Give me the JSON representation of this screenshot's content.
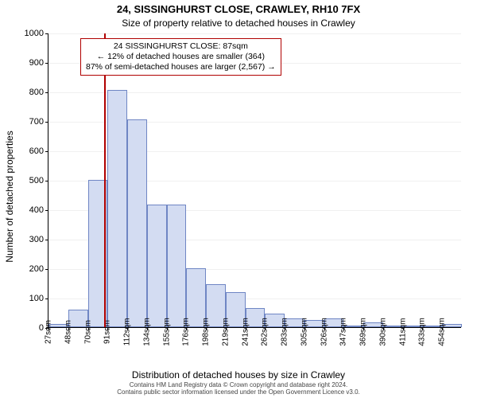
{
  "titles": {
    "line1": "24, SISSINGHURST CLOSE, CRAWLEY, RH10 7FX",
    "line2": "Size of property relative to detached houses in Crawley"
  },
  "axes": {
    "ylabel": "Number of detached properties",
    "xlabel": "Distribution of detached houses by size in Crawley",
    "ylim": [
      0,
      1000
    ],
    "ytick_step": 100,
    "ytick_labels": [
      "0",
      "100",
      "200",
      "300",
      "400",
      "500",
      "600",
      "700",
      "800",
      "900",
      "1000"
    ]
  },
  "chart": {
    "type": "histogram",
    "bar_fill": "#d3dcf2",
    "bar_stroke": "#6f86c4",
    "gridline_color": "#f0f0f0",
    "bin_width_sqm": 21.3,
    "categories": [
      "27sqm",
      "48sqm",
      "70sqm",
      "91sqm",
      "112sqm",
      "134sqm",
      "155sqm",
      "176sqm",
      "198sqm",
      "219sqm",
      "241sqm",
      "262sqm",
      "283sqm",
      "305sqm",
      "326sqm",
      "347sqm",
      "369sqm",
      "390sqm",
      "411sqm",
      "433sqm",
      "454sqm"
    ],
    "values": [
      10,
      60,
      500,
      805,
      705,
      415,
      415,
      200,
      145,
      120,
      65,
      45,
      30,
      25,
      30,
      5,
      15,
      0,
      0,
      5,
      10
    ],
    "marker": {
      "position_sqm": 87,
      "color": "#b00000"
    },
    "callout": {
      "border_color": "#b00000",
      "bg_color": "#ffffff",
      "text_color": "#000000",
      "line1": "24 SISSINGHURST CLOSE: 87sqm",
      "line2": "← 12% of detached houses are smaller (364)",
      "line3": "87% of semi-detached houses are larger (2,567) →"
    }
  },
  "footer": {
    "line1": "Contains HM Land Registry data © Crown copyright and database right 2024.",
    "line2": "Contains public sector information licensed under the Open Government Licence v3.0."
  }
}
